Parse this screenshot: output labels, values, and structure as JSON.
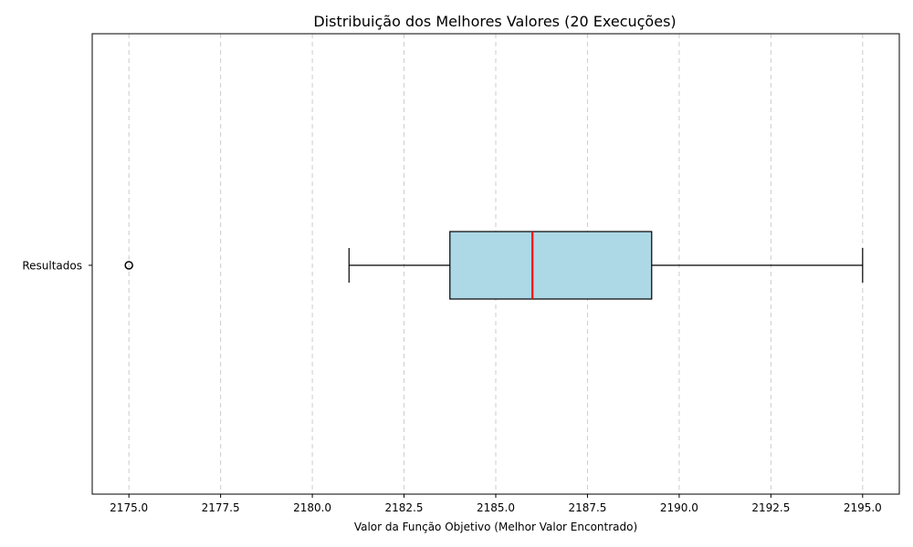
{
  "chart_data": {
    "type": "boxplot",
    "orientation": "horizontal",
    "title": "Distribuição dos Melhores Valores (20 Execuções)",
    "xlabel": "Valor da Função Objetivo (Melhor Valor Encontrado)",
    "ylabel": "",
    "categories": [
      "Resultados"
    ],
    "xlim": [
      2174.0,
      2196.0
    ],
    "xticks": [
      2175.0,
      2177.5,
      2180.0,
      2182.5,
      2185.0,
      2187.5,
      2190.0,
      2192.5,
      2195.0
    ],
    "xtick_labels": [
      "2175.0",
      "2177.5",
      "2180.0",
      "2182.5",
      "2185.0",
      "2187.5",
      "2190.0",
      "2192.5",
      "2195.0"
    ],
    "grid": "x-dashed",
    "boxes": [
      {
        "label": "Resultados",
        "whisker_low": 2181.0,
        "q1": 2183.75,
        "median": 2186.0,
        "q3": 2189.25,
        "whisker_high": 2195.0,
        "outliers": [
          2175.0
        ]
      }
    ],
    "colors": {
      "box_fill": "#add8e6",
      "median": "#ff0000",
      "grid": "#cccccc",
      "edge": "#000000"
    }
  }
}
